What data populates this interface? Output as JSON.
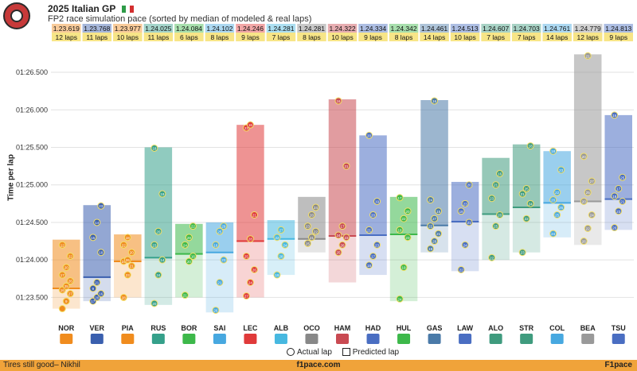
{
  "header": {
    "title": "2025 Italian GP",
    "subtitle": "FP2 race simulation pace (sorted by median of modeled & real laps)"
  },
  "footer": {
    "left": "Tires still good– Nikhil",
    "center": "f1pace.com",
    "right": "F1pace"
  },
  "legend": {
    "actual": "Actual lap",
    "predicted": "Predicted lap"
  },
  "chart_data": {
    "type": "bar",
    "title": "FP2 race simulation pace (sorted by median of modeled & real laps)",
    "ylabel": "Time per lap",
    "ylim": [
      83.25,
      86.85
    ],
    "yticks": [
      {
        "v": 83.5,
        "label": "01:23.500"
      },
      {
        "v": 84.0,
        "label": "01:24.000"
      },
      {
        "v": 84.5,
        "label": "01:24.500"
      },
      {
        "v": 85.0,
        "label": "01:25.000"
      },
      {
        "v": 85.5,
        "label": "01:25.500"
      },
      {
        "v": 86.0,
        "label": "01:26.000"
      },
      {
        "v": 86.5,
        "label": "01:26.500"
      }
    ],
    "drivers": [
      {
        "code": "NOR",
        "median": "1.23.619",
        "laps": "12 laps",
        "color": "#f08c1e",
        "min": 83.35,
        "max": 84.27,
        "med": 83.62,
        "pts": [
          [
            83.35,
            ""
          ],
          [
            83.45,
            "9"
          ],
          [
            83.55,
            "27"
          ],
          [
            83.6,
            "16"
          ],
          [
            83.65,
            "25"
          ],
          [
            83.72,
            "26"
          ],
          [
            83.8,
            "17"
          ],
          [
            83.9,
            "20"
          ],
          [
            84.05,
            "22"
          ],
          [
            84.2,
            "12"
          ]
        ]
      },
      {
        "code": "VER",
        "median": "1.23.768",
        "laps": "11 laps",
        "color": "#3a5fae",
        "min": 83.45,
        "max": 84.73,
        "med": 83.77,
        "pts": [
          [
            83.45,
            "17"
          ],
          [
            83.5,
            "20"
          ],
          [
            83.55,
            "16"
          ],
          [
            83.62,
            "9"
          ],
          [
            83.7,
            "21"
          ],
          [
            84.1,
            "18"
          ],
          [
            84.3,
            "15"
          ],
          [
            84.5,
            "14"
          ],
          [
            84.72,
            "23"
          ]
        ]
      },
      {
        "code": "PIA",
        "median": "1.23.977",
        "laps": "10 laps",
        "color": "#f08c1e",
        "min": 83.5,
        "max": 84.34,
        "med": 83.98,
        "pts": [
          [
            83.5,
            "28"
          ],
          [
            83.8,
            "23"
          ],
          [
            83.92,
            "21"
          ],
          [
            83.98,
            "24"
          ],
          [
            84.0,
            "26"
          ],
          [
            84.1,
            "20"
          ],
          [
            84.2,
            "22"
          ],
          [
            84.3,
            "18"
          ]
        ]
      },
      {
        "code": "RUS",
        "median": "1.24.025",
        "laps": "11 laps",
        "color": "#35a08a",
        "min": 83.4,
        "max": 85.5,
        "med": 84.03,
        "pts": [
          [
            83.42,
            "20"
          ],
          [
            83.8,
            "24"
          ],
          [
            84.0,
            "14"
          ],
          [
            84.2,
            "23"
          ],
          [
            84.38,
            "20"
          ],
          [
            84.88,
            "19"
          ],
          [
            85.49,
            "18"
          ]
        ]
      },
      {
        "code": "BOR",
        "median": "1.24.084",
        "laps": "6 laps",
        "color": "#3db84a",
        "min": 83.5,
        "max": 84.48,
        "med": 84.08,
        "pts": [
          [
            83.53,
            "21"
          ],
          [
            83.98,
            "20"
          ],
          [
            84.05,
            "16"
          ],
          [
            84.2,
            "24"
          ],
          [
            84.3,
            "28"
          ],
          [
            84.45,
            "22"
          ]
        ]
      },
      {
        "code": "SAI",
        "median": "1.24.102",
        "laps": "8 laps",
        "color": "#47a8e0",
        "min": 83.3,
        "max": 84.5,
        "med": 84.1,
        "pts": [
          [
            83.33,
            "26"
          ],
          [
            83.7,
            "21"
          ],
          [
            84.0,
            "23"
          ],
          [
            84.2,
            "16"
          ],
          [
            84.38,
            "25"
          ],
          [
            84.45,
            "29"
          ]
        ]
      },
      {
        "code": "LEC",
        "median": "1.24.246",
        "laps": "9 laps",
        "color": "#e03a3a",
        "min": 83.5,
        "max": 85.8,
        "med": 84.25,
        "pts": [
          [
            83.52,
            "27"
          ],
          [
            83.7,
            "24"
          ],
          [
            83.87,
            "26"
          ],
          [
            84.05,
            "25"
          ],
          [
            84.28,
            "28"
          ],
          [
            84.6,
            "21"
          ],
          [
            85.76,
            "23"
          ],
          [
            85.8,
            "16"
          ]
        ]
      },
      {
        "code": "ALB",
        "median": "1.24.281",
        "laps": "7 laps",
        "color": "#47b8e0",
        "min": 83.8,
        "max": 84.53,
        "med": 84.28,
        "pts": [
          [
            83.8,
            "19"
          ],
          [
            84.05,
            "28"
          ],
          [
            84.2,
            "24"
          ],
          [
            84.3,
            "22"
          ],
          [
            84.4,
            "27"
          ]
        ]
      },
      {
        "code": "OCO",
        "median": "1.24.281",
        "laps": "8 laps",
        "color": "#888888",
        "min": 84.1,
        "max": 84.84,
        "med": 84.28,
        "pts": [
          [
            84.22,
            "25"
          ],
          [
            84.3,
            "21"
          ],
          [
            84.38,
            "22"
          ],
          [
            84.45,
            "23"
          ],
          [
            84.6,
            "20"
          ],
          [
            84.7,
            "24"
          ]
        ]
      },
      {
        "code": "HAM",
        "median": "1.24.322",
        "laps": "10 laps",
        "color": "#c94a52",
        "min": 83.7,
        "max": 86.14,
        "med": 84.32,
        "pts": [
          [
            84.1,
            "25"
          ],
          [
            84.2,
            "26"
          ],
          [
            84.3,
            "23"
          ],
          [
            84.33,
            "24"
          ],
          [
            84.45,
            "17"
          ],
          [
            85.25,
            "21"
          ],
          [
            86.12,
            "16"
          ]
        ]
      },
      {
        "code": "HAD",
        "median": "1.24.334",
        "laps": "9 laps",
        "color": "#4a6ec2",
        "min": 83.8,
        "max": 85.66,
        "med": 84.33,
        "pts": [
          [
            83.93,
            "18"
          ],
          [
            84.05,
            "17"
          ],
          [
            84.2,
            "23"
          ],
          [
            84.4,
            "21"
          ],
          [
            84.6,
            "20"
          ],
          [
            84.78,
            "19"
          ],
          [
            85.66,
            "20"
          ]
        ]
      },
      {
        "code": "HUL",
        "median": "1.24.342",
        "laps": "8 laps",
        "color": "#3db84a",
        "min": 83.45,
        "max": 84.84,
        "med": 84.34,
        "pts": [
          [
            83.48,
            "24"
          ],
          [
            83.9,
            "19"
          ],
          [
            84.3,
            "23"
          ],
          [
            84.4,
            "18"
          ],
          [
            84.55,
            "22"
          ],
          [
            84.65,
            "20"
          ],
          [
            84.83,
            "17"
          ]
        ]
      },
      {
        "code": "GAS",
        "median": "1.24.461",
        "laps": "14 laps",
        "color": "#4a7aa8",
        "min": 84.1,
        "max": 86.13,
        "med": 84.46,
        "pts": [
          [
            84.15,
            "19"
          ],
          [
            84.25,
            "28"
          ],
          [
            84.35,
            "21"
          ],
          [
            84.45,
            "22"
          ],
          [
            84.55,
            "27"
          ],
          [
            84.65,
            "15"
          ],
          [
            84.8,
            "24"
          ],
          [
            86.12,
            "16"
          ]
        ]
      },
      {
        "code": "LAW",
        "median": "1.24.513",
        "laps": "10 laps",
        "color": "#4a6ec2",
        "min": 83.85,
        "max": 85.04,
        "med": 84.51,
        "pts": [
          [
            83.87,
            "22"
          ],
          [
            84.2,
            "24"
          ],
          [
            84.5,
            "21"
          ],
          [
            84.65,
            "18"
          ],
          [
            84.75,
            "23"
          ],
          [
            85.0,
            "20"
          ]
        ]
      },
      {
        "code": "ALO",
        "median": "1.24.607",
        "laps": "7 laps",
        "color": "#3f9b7e",
        "min": 84.0,
        "max": 85.36,
        "med": 84.61,
        "pts": [
          [
            84.03,
            "22"
          ],
          [
            84.45,
            "25"
          ],
          [
            84.6,
            "20"
          ],
          [
            84.82,
            "23"
          ],
          [
            85.0,
            "21"
          ],
          [
            85.15,
            "16"
          ]
        ]
      },
      {
        "code": "STR",
        "median": "1.24.703",
        "laps": "7 laps",
        "color": "#3f9b7e",
        "min": 84.1,
        "max": 85.54,
        "med": 84.7,
        "pts": [
          [
            84.1,
            "23"
          ],
          [
            84.55,
            "22"
          ],
          [
            84.75,
            "24"
          ],
          [
            84.88,
            "21"
          ],
          [
            84.95,
            "25"
          ],
          [
            85.52,
            "18"
          ]
        ]
      },
      {
        "code": "COL",
        "median": "1.24.761",
        "laps": "14 laps",
        "color": "#47a8e0",
        "min": 84.3,
        "max": 85.45,
        "med": 84.76,
        "pts": [
          [
            84.35,
            "24"
          ],
          [
            84.6,
            "25"
          ],
          [
            84.7,
            "26"
          ],
          [
            84.8,
            "20"
          ],
          [
            84.9,
            "22"
          ],
          [
            85.2,
            "23"
          ],
          [
            85.45,
            "18"
          ]
        ]
      },
      {
        "code": "BEA",
        "median": "1.24.779",
        "laps": "12 laps",
        "color": "#999999",
        "min": 84.2,
        "max": 86.74,
        "med": 84.78,
        "pts": [
          [
            84.25,
            "26"
          ],
          [
            84.42,
            "22"
          ],
          [
            84.6,
            "24"
          ],
          [
            84.78,
            "20"
          ],
          [
            84.9,
            "25"
          ],
          [
            85.05,
            "27"
          ],
          [
            85.38,
            "20"
          ],
          [
            86.72,
            "21"
          ]
        ]
      },
      {
        "code": "TSU",
        "median": "1.24.813",
        "laps": "9 laps",
        "color": "#4a6ec2",
        "min": 84.4,
        "max": 85.93,
        "med": 84.81,
        "pts": [
          [
            84.43,
            "20"
          ],
          [
            84.65,
            "23"
          ],
          [
            84.78,
            "21"
          ],
          [
            84.85,
            "18"
          ],
          [
            84.95,
            "17"
          ],
          [
            85.1,
            "25"
          ],
          [
            85.93,
            "16"
          ]
        ]
      }
    ]
  }
}
